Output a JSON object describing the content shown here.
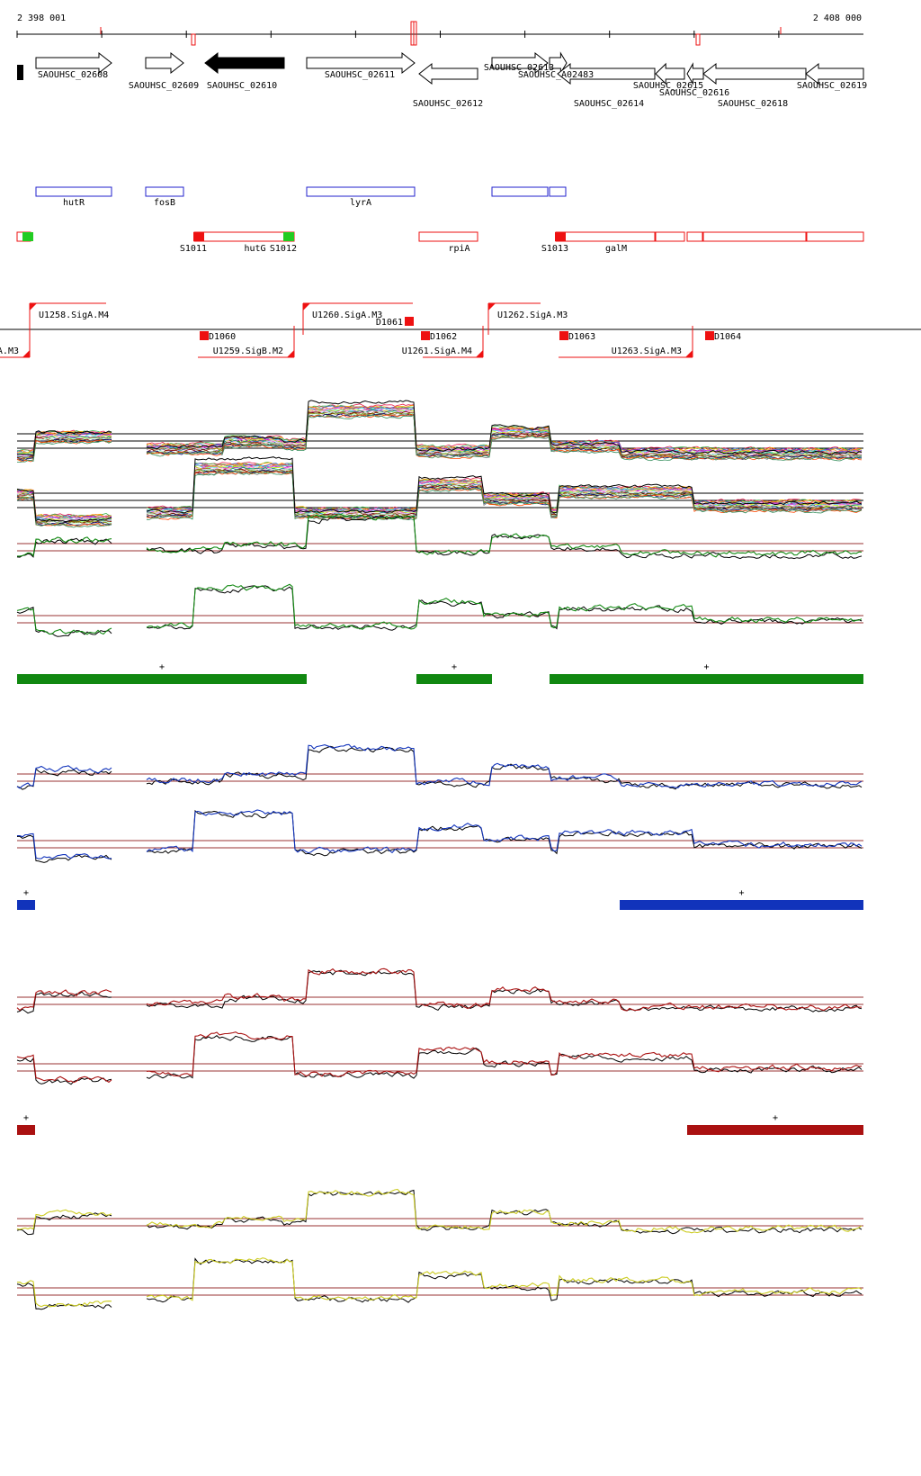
{
  "ruler": {
    "start_label": "2 398 001",
    "end_label": "2 408 000",
    "strand_marks": [
      {
        "pos": 112,
        "dir": "up",
        "type": "line"
      },
      {
        "pos": 215,
        "dir": "down",
        "type": "box"
      },
      {
        "pos": 460,
        "dir": "both",
        "type": "double"
      },
      {
        "pos": 776,
        "dir": "down",
        "type": "box"
      },
      {
        "pos": 868,
        "dir": "up",
        "type": "line"
      }
    ]
  },
  "genes": [
    {
      "label": "SAOUHSC_02608",
      "from": 40,
      "to": 124,
      "row": 0,
      "strand": "+",
      "fill": "white"
    },
    {
      "label": "SAOUHSC_02609",
      "from": 162,
      "to": 204,
      "row": 0,
      "strand": "+",
      "fill": "white"
    },
    {
      "label": "SAOUHSC_02610",
      "from": 228,
      "to": 316,
      "row": 0,
      "strand": "-",
      "fill": "black"
    },
    {
      "label": "SAOUHSC_02611",
      "from": 341,
      "to": 461,
      "row": 0,
      "strand": "+",
      "fill": "white"
    },
    {
      "label": "SAOUHSC_02612",
      "from": 466,
      "to": 531,
      "row": 1,
      "strand": "-",
      "fill": "white"
    },
    {
      "label": "SAOUHSC_02613",
      "from": 547,
      "to": 609,
      "row": 0,
      "strand": "+",
      "fill": "white"
    },
    {
      "label": "SAOUHSC_A02483",
      "from": 611,
      "to": 630,
      "row": 0,
      "strand": "+",
      "fill": "white"
    },
    {
      "label": "SAOUHSC_02614",
      "from": 620,
      "to": 728,
      "row": 1,
      "strand": "-",
      "fill": "white"
    },
    {
      "label": "SAOUHSC_02615",
      "from": 729,
      "to": 761,
      "row": 1,
      "strand": "-",
      "fill": "white"
    },
    {
      "label": "SAOUHSC_02616",
      "from": 764,
      "to": 782,
      "row": 1,
      "strand": "-",
      "fill": "white"
    },
    {
      "label": "SAOUHSC_02618",
      "from": 782,
      "to": 896,
      "row": 1,
      "strand": "-",
      "fill": "white"
    },
    {
      "label": "SAOUHSC_02619",
      "from": 896,
      "to": 960,
      "row": 1,
      "strand": "-",
      "fill": "white"
    }
  ],
  "gene_names_blue": [
    {
      "label": "hutR",
      "from": 40,
      "to": 124
    },
    {
      "label": "fosB",
      "from": 162,
      "to": 204
    },
    {
      "label": "lyrA",
      "from": 341,
      "to": 461
    },
    {
      "label": "",
      "from": 547,
      "to": 609
    },
    {
      "label": "",
      "from": 611,
      "to": 629
    }
  ],
  "gene_names_red": [
    {
      "label": "",
      "from": 19,
      "to": 34
    },
    {
      "label": "hutG",
      "from": 216,
      "to": 327
    },
    {
      "label": "rpiA",
      "from": 466,
      "to": 531
    },
    {
      "label": "galM",
      "from": 618,
      "to": 728
    },
    {
      "label": "",
      "from": 729,
      "to": 761
    },
    {
      "label": "",
      "from": 764,
      "to": 781
    },
    {
      "label": "",
      "from": 782,
      "to": 896
    },
    {
      "label": "",
      "from": 897,
      "to": 960
    }
  ],
  "segment_markers": [
    {
      "label": "",
      "pos": 26,
      "color": "#22cc22"
    },
    {
      "label": "S1011",
      "pos": 216,
      "color": "#ee1111"
    },
    {
      "label": "S1012",
      "pos": 316,
      "color": "#22cc22"
    },
    {
      "label": "S1013",
      "pos": 618,
      "color": "#ee1111"
    }
  ],
  "transcripts": [
    {
      "label": "U1258.SigA.M4",
      "from": 33,
      "to": 118,
      "strand": "+"
    },
    {
      "label": "U1260.SigA.M3",
      "from": 337,
      "to": 459,
      "strand": "+"
    },
    {
      "label": "U1262.SigA.M3",
      "from": 543,
      "to": 601,
      "strand": "+"
    },
    {
      "label": "A.M3",
      "from": 0,
      "to": 33,
      "strand": "-"
    },
    {
      "label": "U1259.SigB.M2",
      "from": 220,
      "to": 327,
      "strand": "-"
    },
    {
      "label": "U1261.SigA.M4",
      "from": 470,
      "to": 537,
      "strand": "-"
    },
    {
      "label": "U1263.SigA.M3",
      "from": 621,
      "to": 770,
      "strand": "-"
    }
  ],
  "downstream_markers": [
    {
      "label": "D1060",
      "pos": 222
    },
    {
      "label": "D1061",
      "pos": 450
    },
    {
      "label": "D1062",
      "pos": 468
    },
    {
      "label": "D1063",
      "pos": 622
    },
    {
      "label": "D1064",
      "pos": 784
    }
  ],
  "colors": {
    "red_feature": "#ee1111",
    "green_feature": "#22cc22",
    "blue_gene": "#2222cc",
    "green_panel": "#118811",
    "blue_panel": "#1133bb",
    "red_panel": "#aa1111",
    "yellow_panel": "#cccc22",
    "threshold_line": "#993333"
  },
  "panels": [
    {
      "name": "green",
      "color": "#118811",
      "bars": [
        {
          "from": 19,
          "to": 341,
          "label": "+"
        },
        {
          "from": 463,
          "to": 547,
          "label": "+"
        },
        {
          "from": 611,
          "to": 960,
          "label": "+"
        }
      ]
    },
    {
      "name": "blue",
      "color": "#1133bb",
      "bars": [
        {
          "from": 19,
          "to": 39,
          "label": "+"
        },
        {
          "from": 689,
          "to": 960,
          "label": "+"
        }
      ]
    },
    {
      "name": "red",
      "color": "#aa1111",
      "bars": [
        {
          "from": 19,
          "to": 39,
          "label": "+"
        },
        {
          "from": 764,
          "to": 960,
          "label": "+"
        }
      ]
    },
    {
      "name": "yellow",
      "color": "#cccc22",
      "bars": []
    }
  ]
}
